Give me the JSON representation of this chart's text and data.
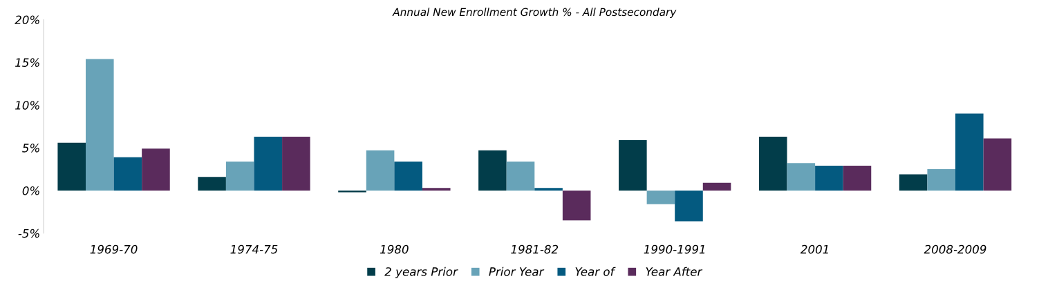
{
  "chart_data": {
    "type": "bar",
    "title": "Annual New Enrollment Growth % - All Postsecondary",
    "categories": [
      "1969-70",
      "1974-75",
      "1980",
      "1981-82",
      "1990-1991",
      "2001",
      "2008-2009"
    ],
    "series": [
      {
        "name": "2 years Prior",
        "color": "#023d4a",
        "values": [
          5.6,
          1.6,
          -0.2,
          4.7,
          5.9,
          6.3,
          1.9
        ]
      },
      {
        "name": "Prior Year",
        "color": "#68a3b8",
        "values": [
          15.4,
          3.4,
          4.7,
          3.4,
          -1.6,
          3.2,
          2.5
        ]
      },
      {
        "name": "Year of",
        "color": "#045a80",
        "values": [
          3.9,
          6.3,
          3.4,
          0.3,
          -3.6,
          2.9,
          9.0
        ]
      },
      {
        "name": "Year After",
        "color": "#5a2b5c",
        "values": [
          4.9,
          6.3,
          0.3,
          -3.5,
          0.9,
          2.9,
          6.1
        ]
      }
    ],
    "ylim": [
      -5,
      20
    ],
    "yticks": [
      {
        "value": -5,
        "label": "-5%"
      },
      {
        "value": 0,
        "label": "0%"
      },
      {
        "value": 5,
        "label": "5%"
      },
      {
        "value": 10,
        "label": "10%"
      },
      {
        "value": 15,
        "label": "15%"
      },
      {
        "value": 20,
        "label": "20%"
      }
    ],
    "grid": false,
    "legend": "bottom"
  }
}
